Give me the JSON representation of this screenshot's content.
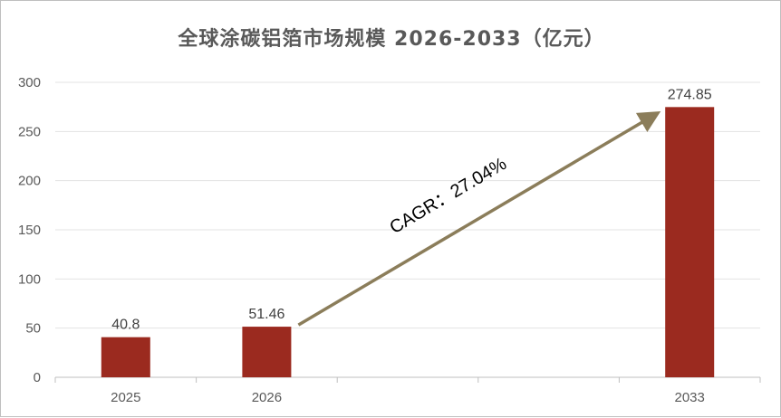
{
  "chart_data": {
    "type": "bar",
    "title": "全球涂碳铝箔市场规模 2026-2033（亿元）",
    "categories": [
      "2025",
      "2026",
      "",
      "",
      "2033"
    ],
    "values": [
      40.8,
      51.46,
      null,
      null,
      274.85
    ],
    "data_labels": [
      "40.8",
      "51.46",
      "",
      "",
      "274.85"
    ],
    "ylim": [
      0,
      300
    ],
    "yticks": [
      "0",
      "50",
      "100",
      "150",
      "200",
      "250",
      "300"
    ],
    "grid": true,
    "bar_color": "#9b2a1f",
    "annotation": {
      "text": "CAGR：27.04%",
      "from_category": "2026",
      "to_category": "2033",
      "arrow_color": "#8b7d5a"
    }
  }
}
